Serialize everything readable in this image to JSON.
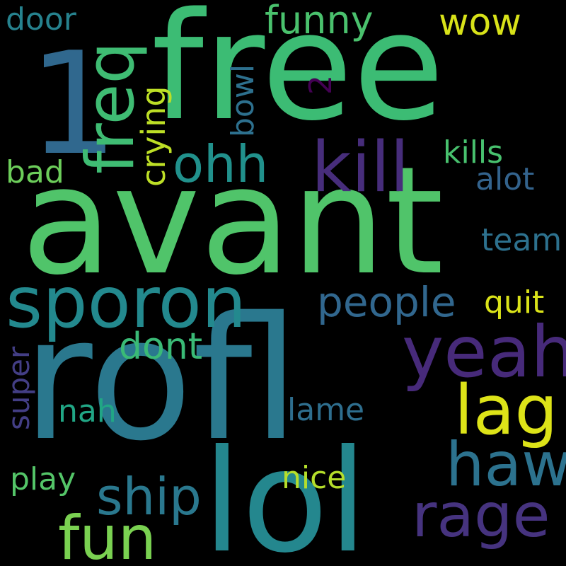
{
  "background": "#000000",
  "words": [
    {
      "text": "free",
      "color": "#3cbc74",
      "vertical": false
    },
    {
      "text": "1",
      "color": "#30688e",
      "vertical": false
    },
    {
      "text": "avant",
      "color": "#50c46a",
      "vertical": false
    },
    {
      "text": "rofl",
      "color": "#2a788e",
      "vertical": false
    },
    {
      "text": "lol",
      "color": "#24878e",
      "vertical": false
    },
    {
      "text": "sporon",
      "color": "#23898e",
      "vertical": false
    },
    {
      "text": "kill",
      "color": "#472d7b",
      "vertical": false
    },
    {
      "text": "freq",
      "color": "#3fbc73",
      "vertical": true
    },
    {
      "text": "yeah",
      "color": "#472a7a",
      "vertical": false
    },
    {
      "text": "ohh",
      "color": "#21918c",
      "vertical": false
    },
    {
      "text": "lag",
      "color": "#dde318",
      "vertical": false
    },
    {
      "text": "haw",
      "color": "#2c728e",
      "vertical": false
    },
    {
      "text": "rage",
      "color": "#46337f",
      "vertical": false
    },
    {
      "text": "ship",
      "color": "#2a788e",
      "vertical": false
    },
    {
      "text": "fun",
      "color": "#7ad151",
      "vertical": false
    },
    {
      "text": "people",
      "color": "#31678e",
      "vertical": false
    },
    {
      "text": "funny",
      "color": "#4ac16d",
      "vertical": false
    },
    {
      "text": "wow",
      "color": "#d8e219",
      "vertical": false
    },
    {
      "text": "door",
      "color": "#26828e",
      "vertical": false
    },
    {
      "text": "2",
      "color": "#440154",
      "vertical": true
    },
    {
      "text": "bowl",
      "color": "#2d708e",
      "vertical": true
    },
    {
      "text": "crying",
      "color": "#bddf26",
      "vertical": true
    },
    {
      "text": "kills",
      "color": "#48c16e",
      "vertical": false
    },
    {
      "text": "alot",
      "color": "#33638d",
      "vertical": false
    },
    {
      "text": "bad",
      "color": "#6ccd5a",
      "vertical": false
    },
    {
      "text": "team",
      "color": "#2d718e",
      "vertical": false
    },
    {
      "text": "quit",
      "color": "#dae319",
      "vertical": false
    },
    {
      "text": "dont",
      "color": "#3aba76",
      "vertical": false
    },
    {
      "text": "super",
      "color": "#433e85",
      "vertical": true
    },
    {
      "text": "nah",
      "color": "#21a685",
      "vertical": false
    },
    {
      "text": "lame",
      "color": "#2e6e8e",
      "vertical": false
    },
    {
      "text": "nice",
      "color": "#b5de2b",
      "vertical": false
    },
    {
      "text": "play",
      "color": "#54c568",
      "vertical": false
    }
  ]
}
